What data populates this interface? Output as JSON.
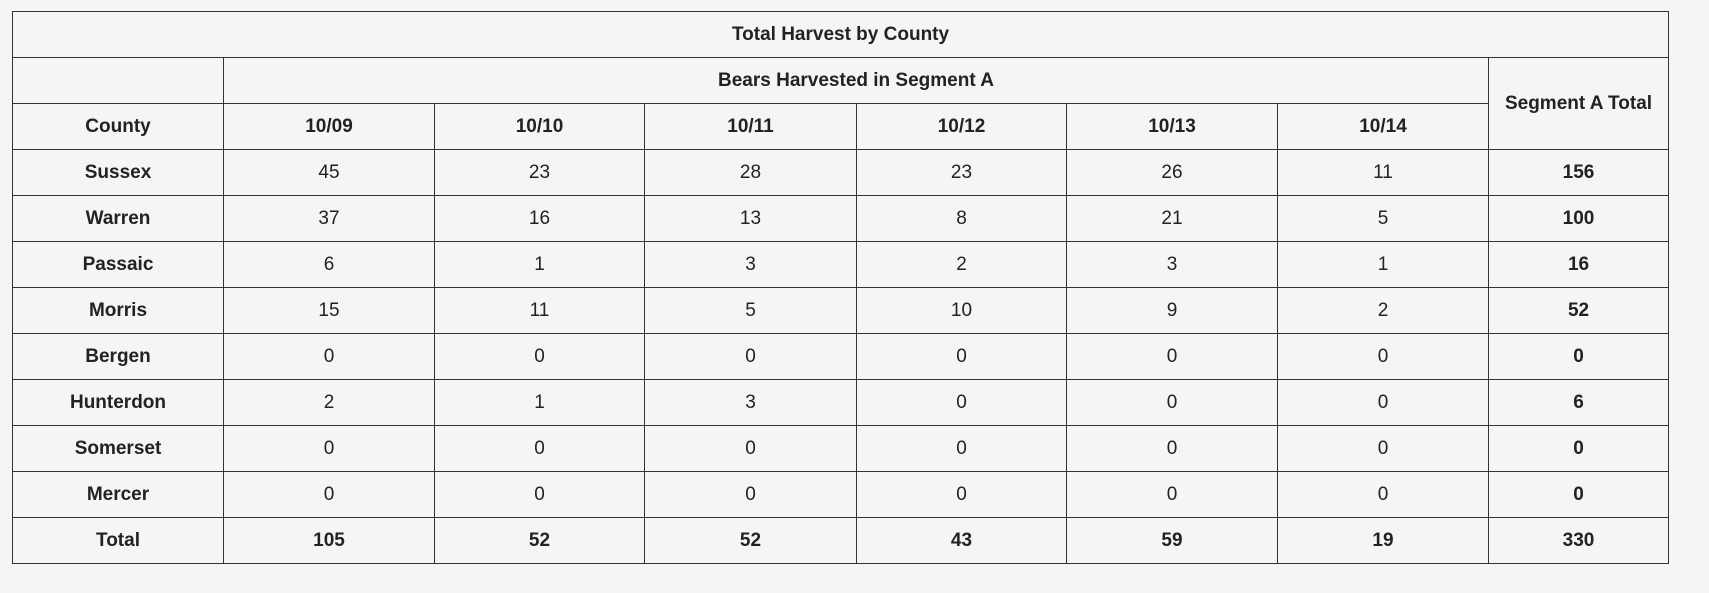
{
  "table": {
    "title": "Total Harvest by County",
    "group_header": "Bears Harvested in Segment A",
    "total_header": "Segment A Total",
    "columns": [
      "County",
      "10/09",
      "10/10",
      "10/11",
      "10/12",
      "10/13",
      "10/14"
    ],
    "rows": [
      [
        "Sussex",
        45,
        23,
        28,
        23,
        26,
        11,
        156
      ],
      [
        "Warren",
        37,
        16,
        13,
        8,
        21,
        5,
        100
      ],
      [
        "Passaic",
        6,
        1,
        3,
        2,
        3,
        1,
        16
      ],
      [
        "Morris",
        15,
        11,
        5,
        10,
        9,
        2,
        52
      ],
      [
        "Bergen",
        0,
        0,
        0,
        0,
        0,
        0,
        0
      ],
      [
        "Hunterdon",
        2,
        1,
        3,
        0,
        0,
        0,
        6
      ],
      [
        "Somerset",
        0,
        0,
        0,
        0,
        0,
        0,
        0
      ],
      [
        "Mercer",
        0,
        0,
        0,
        0,
        0,
        0,
        0
      ]
    ],
    "total_row": [
      "Total",
      105,
      52,
      52,
      43,
      59,
      19,
      330
    ]
  }
}
